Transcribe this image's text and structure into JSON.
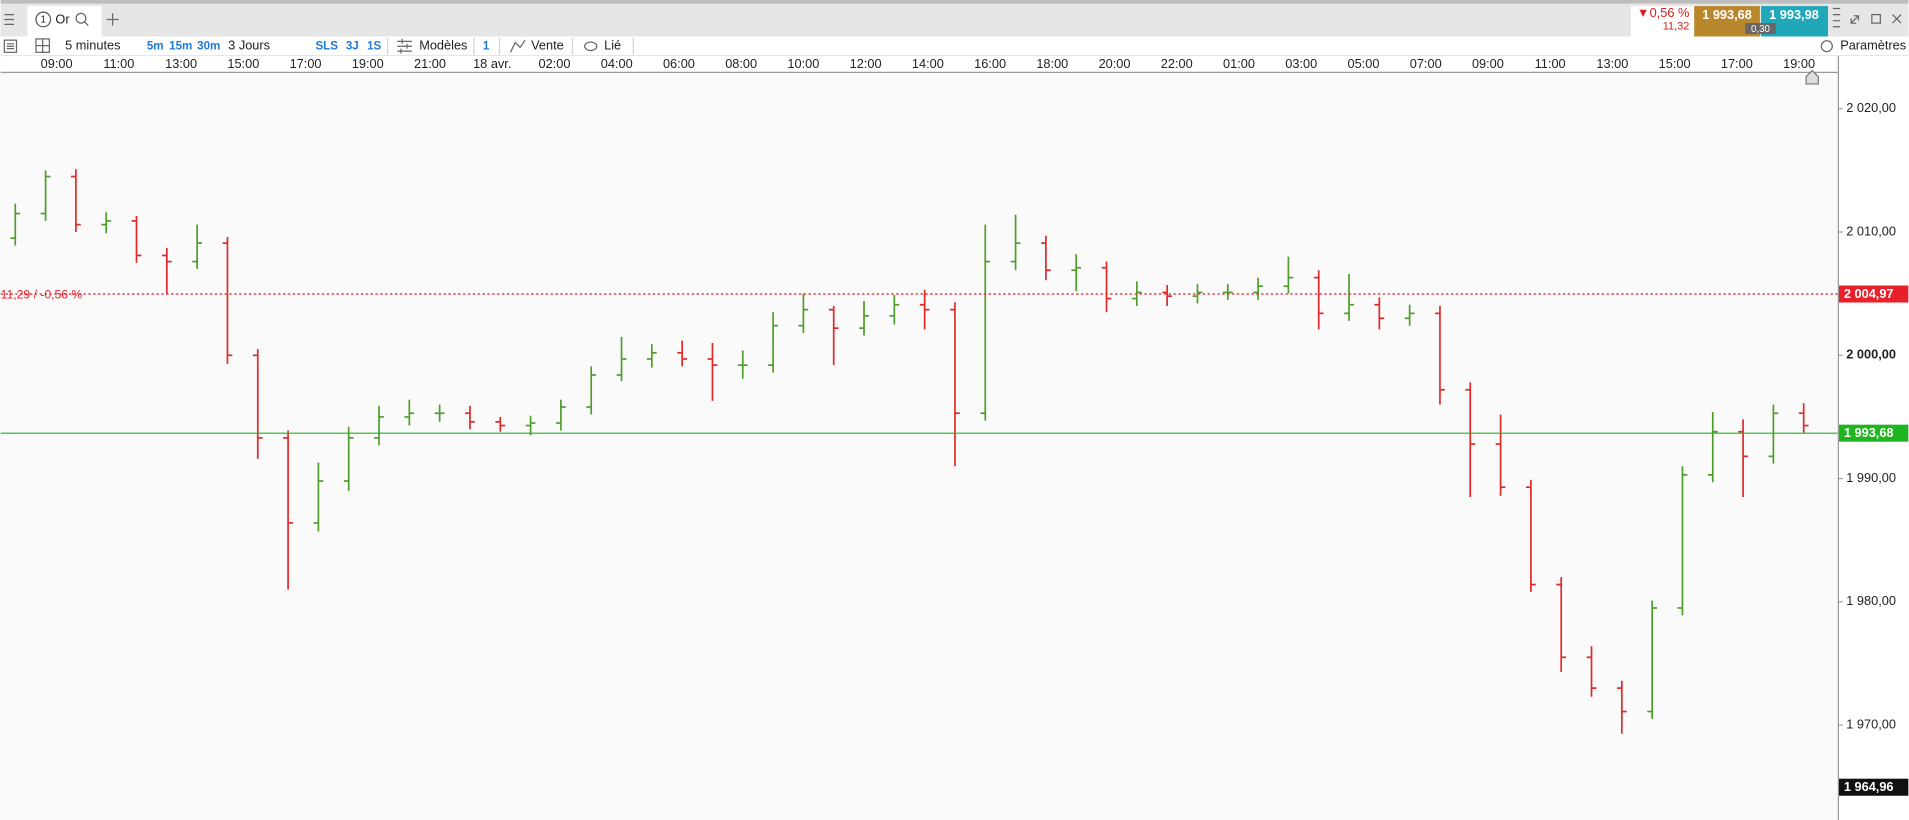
{
  "header": {
    "tab_number": "1",
    "tab_label": "Or",
    "change_pct": "0,56 %",
    "change_abs": "11,32",
    "bid": "1 993,68",
    "ask": "1 993,98",
    "spread": "0,30"
  },
  "toolbar": {
    "interval": "5 minutes",
    "interval_buttons": [
      "5m",
      "15m",
      "30m"
    ],
    "range": "3 Jours",
    "range_buttons": [
      "SLS",
      "3J",
      "1S"
    ],
    "templates": "Modèles",
    "link_number": "1",
    "trade": "Vente",
    "linked": "Lié",
    "settings": "Paramètres"
  },
  "chart_data": {
    "type": "ohlc",
    "up_color": "#4f9e2c",
    "down_color": "#e02a2a",
    "open": [
      2009.5,
      2011.5,
      2014.5,
      2010.6,
      2010.9,
      2008.1,
      2007.6,
      2009.1,
      2000.0,
      1993.3,
      1986.4,
      1989.8,
      1993.3,
      1995.0,
      1995.3,
      1995.3,
      1994.6,
      1994.3,
      1994.5,
      1995.8,
      1998.4,
      1999.7,
      2000.2,
      1999.7,
      1999.2,
      1999.2,
      2002.4,
      2003.7,
      2002.2,
      2003.2,
      2004.1,
      2003.7,
      1995.3,
      2007.6,
      2009.1,
      2006.9,
      2007.1,
      2004.6,
      2005.1,
      2004.8,
      2005.1,
      2005.1,
      2005.6,
      2006.3,
      2003.4,
      2004.1,
      2003.0,
      2003.4,
      1997.2,
      1992.8,
      1989.3,
      1981.4,
      1975.5,
      1973.0,
      1971.1,
      1979.5,
      1990.3,
      1993.8,
      1991.8,
      1995.3
    ],
    "high": [
      2012.3,
      2015.0,
      2015.1,
      2011.6,
      2011.3,
      2008.7,
      2010.6,
      2009.6,
      2000.5,
      1993.9,
      1991.3,
      1994.2,
      1995.9,
      1996.4,
      1996.0,
      1995.9,
      1995.0,
      1995.1,
      1996.4,
      1999.1,
      2001.5,
      2000.9,
      2001.2,
      2001.0,
      2000.4,
      2003.5,
      2005.0,
      2004.0,
      2004.4,
      2004.9,
      2005.3,
      2004.3,
      2010.6,
      2011.4,
      2009.7,
      2008.2,
      2007.6,
      2006.0,
      2005.7,
      2005.8,
      2005.8,
      2006.3,
      2008.0,
      2006.9,
      2006.6,
      2004.7,
      2004.1,
      2004.0,
      1997.8,
      1995.2,
      1989.9,
      1982.0,
      1976.4,
      1973.6,
      1980.1,
      1991.0,
      1995.4,
      1994.8,
      1996.0,
      1996.1
    ],
    "low": [
      2008.9,
      2010.9,
      2010.0,
      2009.9,
      2007.5,
      2005.0,
      2007.0,
      1999.3,
      1991.6,
      1981.0,
      1985.7,
      1989.0,
      1992.7,
      1994.3,
      1994.6,
      1994.0,
      1993.8,
      1993.5,
      1993.9,
      1995.2,
      1997.9,
      1999.0,
      1999.1,
      1996.3,
      1998.1,
      1998.6,
      2001.8,
      1999.2,
      2001.6,
      2002.5,
      2002.1,
      1991.0,
      1994.7,
      2006.9,
      2006.1,
      2005.2,
      2003.5,
      2004.0,
      2004.0,
      2004.2,
      2004.5,
      2004.5,
      2005.0,
      2002.1,
      2002.8,
      2002.1,
      2002.4,
      1996.0,
      1988.5,
      1988.6,
      1980.8,
      1974.3,
      1972.3,
      1969.3,
      1970.5,
      1978.9,
      1989.7,
      1988.5,
      1991.2,
      1993.7
    ],
    "close": [
      2011.5,
      2014.5,
      2010.6,
      2010.9,
      2008.1,
      2007.6,
      2009.1,
      2000.0,
      1993.3,
      1986.4,
      1989.8,
      1993.3,
      1995.0,
      1995.3,
      1995.3,
      1994.6,
      1994.3,
      1994.5,
      1995.8,
      1998.4,
      1999.7,
      2000.2,
      1999.7,
      1999.2,
      1999.2,
      2002.4,
      2003.7,
      2002.2,
      2003.2,
      2004.1,
      2003.7,
      1995.3,
      2007.6,
      2009.1,
      2006.9,
      2007.1,
      2004.6,
      2005.1,
      2004.8,
      2005.1,
      2005.1,
      2005.6,
      2006.3,
      2003.4,
      2004.1,
      2003.0,
      2003.4,
      1997.2,
      1992.8,
      1989.3,
      1981.4,
      1975.5,
      1973.0,
      1971.1,
      1979.5,
      1990.3,
      1993.8,
      1991.8,
      1995.3,
      1994.3
    ],
    "ylim": [
      1962.3,
      2022.9
    ],
    "yticks": [
      {
        "value": 1970,
        "label": "1 970,00"
      },
      {
        "value": 1980,
        "label": "1 980,00"
      },
      {
        "value": 1990,
        "label": "1 990,00"
      },
      {
        "value": 2000,
        "label": "2 000,00"
      },
      {
        "value": 2010,
        "label": "2 010,00"
      },
      {
        "value": 2020,
        "label": "2 020,00"
      }
    ],
    "time_labels": [
      "09:00",
      "11:00",
      "13:00",
      "15:00",
      "17:00",
      "19:00",
      "21:00",
      "18 avr.",
      "02:00",
      "04:00",
      "06:00",
      "08:00",
      "10:00",
      "12:00",
      "14:00",
      "16:00",
      "18:00",
      "20:00",
      "22:00",
      "01:00",
      "03:00",
      "05:00",
      "07:00",
      "09:00",
      "11:00",
      "13:00",
      "15:00",
      "17:00",
      "19:00"
    ],
    "price_lines": [
      {
        "value": 2004.97,
        "label": "2 004,97",
        "color": "#e8202a",
        "style": "dashed",
        "note": "11,29 / -0,56 %"
      },
      {
        "value": 1993.68,
        "label": "1 993,68",
        "color": "#1fb51f",
        "style": "solid"
      },
      {
        "value": 1964.96,
        "label": "1 964,96",
        "color": "#111111",
        "style": "none"
      }
    ]
  }
}
